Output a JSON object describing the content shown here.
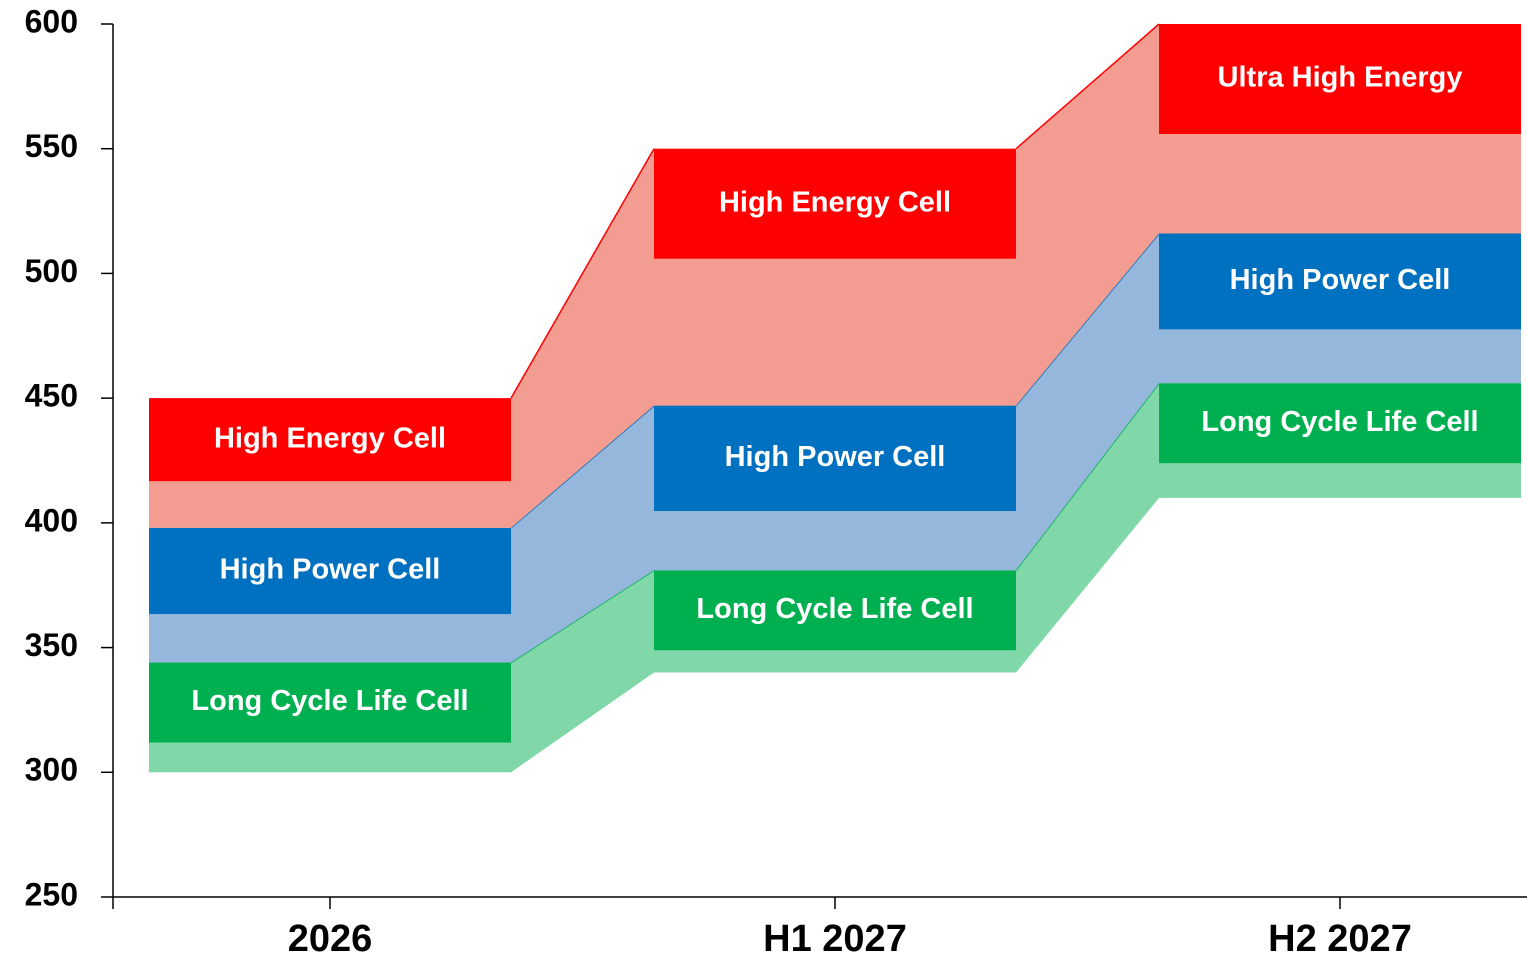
{
  "chart_data": {
    "type": "range-steps",
    "categories": [
      "2026",
      "H1 2027",
      "H2 2027"
    ],
    "ylim": [
      250,
      600
    ],
    "yticks": [
      250,
      300,
      350,
      400,
      450,
      500,
      550,
      600
    ],
    "series": [
      {
        "labels": [
          "Long Cycle Life Cell",
          "Long Cycle Life Cell",
          "Long Cycle Life Cell"
        ],
        "color": "#00b050",
        "fill": "#80d8a8",
        "low": [
          300,
          340,
          410
        ],
        "high": [
          344,
          381,
          456
        ]
      },
      {
        "labels": [
          "High Power Cell",
          "High Power Cell",
          "High Power Cell"
        ],
        "color": "#0070c0",
        "fill": "#95b7dc",
        "low": [
          344,
          381,
          456
        ],
        "high": [
          398,
          447,
          516
        ]
      },
      {
        "labels": [
          "High Energy Cell",
          "High Energy Cell",
          "Ultra High Energy"
        ],
        "color": "#ff0000",
        "fill": "#f39c92",
        "low": [
          398,
          447,
          516
        ],
        "high": [
          450,
          550,
          600
        ]
      }
    ]
  }
}
